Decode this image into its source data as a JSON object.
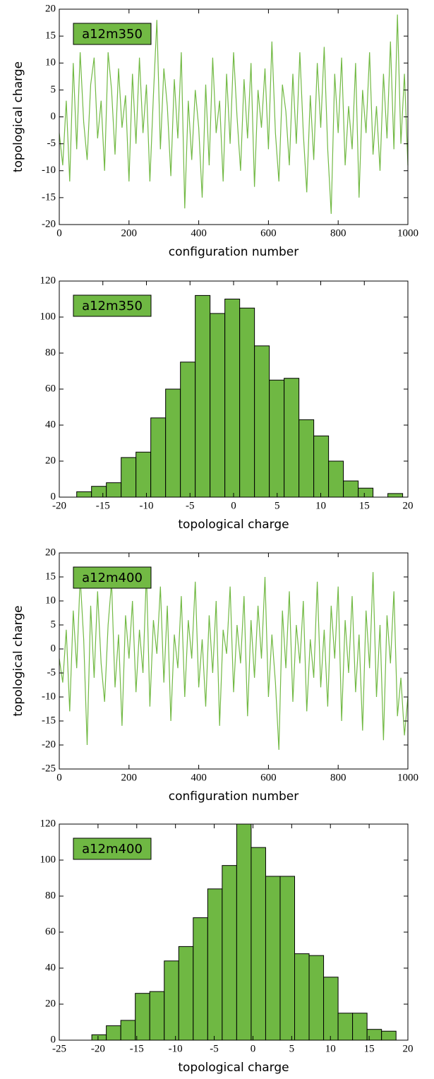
{
  "chart_data": [
    {
      "type": "line",
      "annotation": "a12m350",
      "xlabel": "configuration number",
      "ylabel": "topological charge",
      "color": "#72b944",
      "xlim": [
        0,
        1000
      ],
      "xticks": [
        0,
        200,
        400,
        600,
        800,
        1000
      ],
      "ylim": [
        -20,
        20
      ],
      "yticks": [
        -20,
        -15,
        -10,
        -5,
        0,
        5,
        10,
        15,
        20
      ],
      "series": [
        {
          "x": [
            0,
            10,
            20,
            30,
            40,
            50,
            60,
            70,
            80,
            90,
            100,
            110,
            120,
            130,
            140,
            150,
            160,
            170,
            180,
            190,
            200,
            210,
            220,
            230,
            240,
            250,
            260,
            270,
            280,
            290,
            300,
            310,
            320,
            330,
            340,
            350,
            360,
            370,
            380,
            390,
            400,
            410,
            420,
            430,
            440,
            450,
            460,
            470,
            480,
            490,
            500,
            510,
            520,
            530,
            540,
            550,
            560,
            570,
            580,
            590,
            600,
            610,
            620,
            630,
            640,
            650,
            660,
            670,
            680,
            690,
            700,
            710,
            720,
            730,
            740,
            750,
            760,
            770,
            780,
            790,
            800,
            810,
            820,
            830,
            840,
            850,
            860,
            870,
            880,
            890,
            900,
            910,
            920,
            930,
            940,
            950,
            960,
            970,
            980,
            990,
            1000
          ],
          "values": [
            -3,
            -9,
            3,
            -12,
            10,
            -6,
            12,
            -1,
            -8,
            6,
            11,
            -4,
            3,
            -10,
            12,
            5,
            -7,
            9,
            -2,
            4,
            -12,
            8,
            -5,
            11,
            -3,
            6,
            -12,
            4,
            18,
            -6,
            9,
            2,
            -11,
            7,
            -4,
            12,
            -17,
            3,
            -8,
            5,
            -2,
            -15,
            6,
            -9,
            11,
            -3,
            3,
            -12,
            8,
            -5,
            12,
            0,
            -10,
            7,
            -4,
            10,
            -13,
            5,
            -2,
            9,
            -6,
            14,
            -3,
            -12,
            6,
            1,
            -9,
            8,
            -5,
            12,
            -3,
            -14,
            4,
            -8,
            10,
            -2,
            13,
            -6,
            -18,
            8,
            -3,
            11,
            -9,
            2,
            -6,
            10,
            -15,
            5,
            -3,
            12,
            -7,
            2,
            -10,
            8,
            -4,
            14,
            -6,
            19,
            -5,
            8,
            -9
          ]
        }
      ]
    },
    {
      "type": "histogram",
      "annotation": "a12m350",
      "xlabel": "topological charge",
      "color": "#6fb843",
      "xlim": [
        -20,
        20
      ],
      "xticks": [
        -20,
        -15,
        -10,
        -5,
        0,
        5,
        10,
        15,
        20
      ],
      "ylim": [
        0,
        120
      ],
      "yticks": [
        0,
        20,
        40,
        60,
        80,
        100,
        120
      ],
      "bins": [
        -18,
        -16.3,
        -14.6,
        -12.9,
        -11.2,
        -9.5,
        -7.8,
        -6.1,
        -4.4,
        -2.7,
        -1,
        0.7,
        2.4,
        4.1,
        5.8,
        7.5,
        9.2,
        10.9,
        12.6,
        14.3,
        16,
        17.7,
        19.4
      ],
      "values": [
        3,
        6,
        8,
        22,
        25,
        44,
        60,
        75,
        112,
        102,
        110,
        105,
        84,
        65,
        66,
        43,
        34,
        20,
        9,
        5,
        0,
        2
      ]
    },
    {
      "type": "line",
      "annotation": "a12m400",
      "xlabel": "configuration number",
      "ylabel": "topological charge",
      "color": "#72b944",
      "xlim": [
        0,
        1000
      ],
      "xticks": [
        0,
        200,
        400,
        600,
        800,
        1000
      ],
      "ylim": [
        -25,
        20
      ],
      "yticks": [
        -25,
        -20,
        -15,
        -10,
        -5,
        0,
        5,
        10,
        15,
        20
      ],
      "series": [
        {
          "x": [
            0,
            10,
            20,
            30,
            40,
            50,
            60,
            70,
            80,
            90,
            100,
            110,
            120,
            130,
            140,
            150,
            160,
            170,
            180,
            190,
            200,
            210,
            220,
            230,
            240,
            250,
            260,
            270,
            280,
            290,
            300,
            310,
            320,
            330,
            340,
            350,
            360,
            370,
            380,
            390,
            400,
            410,
            420,
            430,
            440,
            450,
            460,
            470,
            480,
            490,
            500,
            510,
            520,
            530,
            540,
            550,
            560,
            570,
            580,
            590,
            600,
            610,
            620,
            630,
            640,
            650,
            660,
            670,
            680,
            690,
            700,
            710,
            720,
            730,
            740,
            750,
            760,
            770,
            780,
            790,
            800,
            810,
            820,
            830,
            840,
            850,
            860,
            870,
            880,
            890,
            900,
            910,
            920,
            930,
            940,
            950,
            960,
            970,
            980,
            990,
            1000
          ],
          "values": [
            -2,
            -7,
            4,
            -13,
            8,
            -4,
            15,
            2,
            -20,
            9,
            -6,
            12,
            -3,
            -11,
            5,
            14,
            -8,
            3,
            -16,
            7,
            -2,
            10,
            -9,
            4,
            -5,
            16,
            -12,
            6,
            -1,
            13,
            -7,
            9,
            -15,
            3,
            -4,
            11,
            -10,
            6,
            -2,
            14,
            -8,
            2,
            -12,
            7,
            -5,
            10,
            -16,
            4,
            -1,
            13,
            -9,
            5,
            -3,
            11,
            -14,
            6,
            -6,
            9,
            -2,
            15,
            -10,
            3,
            -7,
            -21,
            8,
            -4,
            12,
            -11,
            5,
            -3,
            10,
            -13,
            2,
            -6,
            14,
            -8,
            4,
            -12,
            9,
            -2,
            13,
            -15,
            6,
            -5,
            11,
            -9,
            3,
            -17,
            8,
            -4,
            16,
            -10,
            5,
            -19,
            7,
            -3,
            12,
            -14,
            -6,
            -18,
            -10
          ]
        }
      ]
    },
    {
      "type": "histogram",
      "annotation": "a12m400",
      "xlabel": "topological charge",
      "color": "#6fb843",
      "xlim": [
        -25,
        20
      ],
      "xticks": [
        -25,
        -20,
        -15,
        -10,
        -5,
        0,
        5,
        10,
        15,
        20
      ],
      "ylim": [
        0,
        120
      ],
      "yticks": [
        0,
        20,
        40,
        60,
        80,
        100,
        120
      ],
      "bins": [
        -20.8,
        -18.93,
        -17.06,
        -15.19,
        -13.32,
        -11.45,
        -9.58,
        -7.71,
        -5.84,
        -3.97,
        -2.1,
        -0.23,
        1.64,
        3.51,
        5.38,
        7.25,
        9.12,
        10.99,
        12.86,
        14.73,
        16.6,
        18.47
      ],
      "values": [
        3,
        8,
        11,
        26,
        27,
        44,
        52,
        68,
        84,
        97,
        120,
        107,
        91,
        91,
        48,
        47,
        35,
        15,
        15,
        6,
        5
      ]
    }
  ]
}
